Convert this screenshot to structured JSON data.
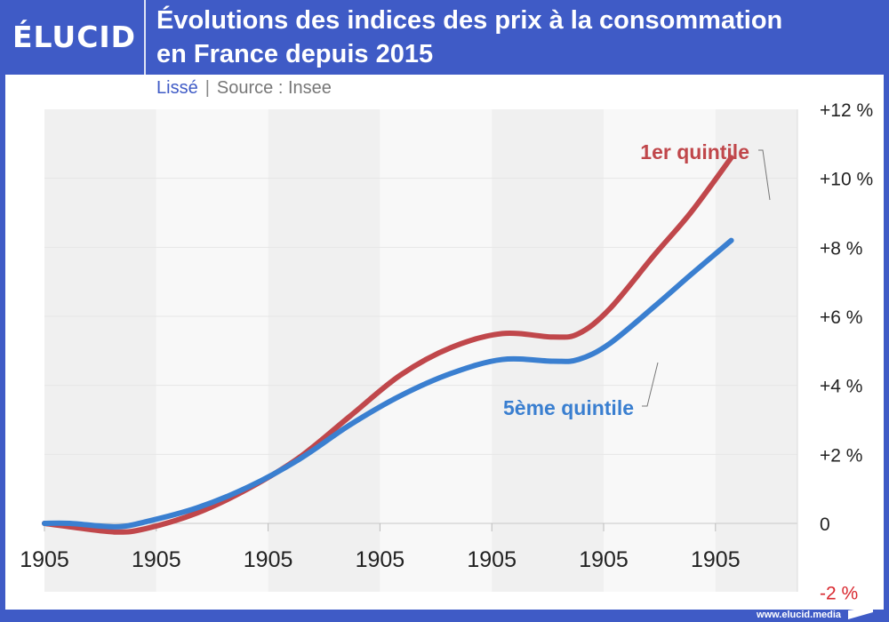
{
  "header": {
    "logo": "ÉLUCID",
    "title_line1": "Évolutions des indices des prix à la consommation",
    "title_line2": "en France depuis 2015"
  },
  "subtitle": {
    "smoothed": "Lissé",
    "separator": "|",
    "source": "Source : Insee"
  },
  "footer": {
    "website": "www.elucid.media"
  },
  "colors": {
    "brand": "#3f5bc6",
    "series_1": "#c0474b",
    "series_2": "#3a7fd0",
    "negative_tick": "#d9282f"
  },
  "chart_data": {
    "type": "line",
    "title": "Évolutions des indices des prix à la consommation en France depuis 2015",
    "subtitle": "Lissé | Source : Insee",
    "xlabel": "",
    "ylabel": "",
    "x_tick_labels": [
      "1905",
      "1905",
      "1905",
      "1905",
      "1905",
      "1905",
      "1905"
    ],
    "y_ticks": [
      {
        "value": 12,
        "label": "+12 %"
      },
      {
        "value": 10,
        "label": "+10 %"
      },
      {
        "value": 8,
        "label": "+8 %"
      },
      {
        "value": 6,
        "label": "+6 %"
      },
      {
        "value": 4,
        "label": "+4 %"
      },
      {
        "value": 2,
        "label": "+2 %"
      },
      {
        "value": 0,
        "label": "0"
      },
      {
        "value": -2,
        "label": "-2 %"
      }
    ],
    "ylim": [
      -2,
      12
    ],
    "xlim": [
      0,
      7.4
    ],
    "y_axis_position": "right",
    "grid": true,
    "alternating_bands": true,
    "x": [
      0,
      0.25,
      0.7,
      1.0,
      1.5,
      2.0,
      2.5,
      3.0,
      3.5,
      4.0,
      4.5,
      5.0,
      5.25,
      5.55,
      6.0,
      6.35,
      6.75
    ],
    "series": [
      {
        "name": "1er quintile",
        "label": "1er quintile",
        "values": [
          0,
          -0.1,
          -0.25,
          -0.15,
          0.3,
          1.0,
          1.9,
          3.1,
          4.3,
          5.1,
          5.5,
          5.4,
          5.5,
          6.2,
          7.8,
          9.0,
          10.6
        ]
      },
      {
        "name": "5ème quintile",
        "label": "5ème quintile",
        "values": [
          0,
          0,
          -0.1,
          0.05,
          0.45,
          1.05,
          1.85,
          2.85,
          3.7,
          4.35,
          4.75,
          4.7,
          4.75,
          5.2,
          6.3,
          7.2,
          8.2
        ]
      }
    ]
  }
}
